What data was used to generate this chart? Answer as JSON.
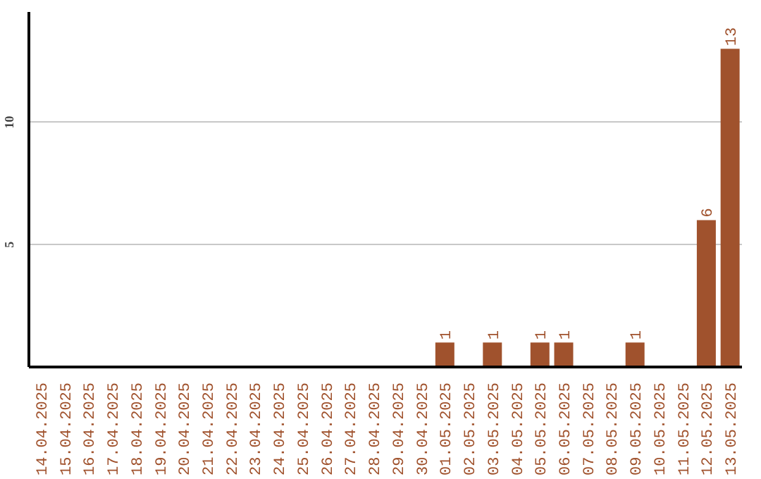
{
  "chart_data": {
    "type": "bar",
    "categories": [
      "14.04.2025",
      "15.04.2025",
      "16.04.2025",
      "17.04.2025",
      "18.04.2025",
      "19.04.2025",
      "20.04.2025",
      "21.04.2025",
      "22.04.2025",
      "23.04.2025",
      "24.04.2025",
      "25.04.2025",
      "26.04.2025",
      "27.04.2025",
      "28.04.2025",
      "29.04.2025",
      "30.04.2025",
      "01.05.2025",
      "02.05.2025",
      "03.05.2025",
      "04.05.2025",
      "05.05.2025",
      "06.05.2025",
      "07.05.2025",
      "08.05.2025",
      "09.05.2025",
      "10.05.2025",
      "11.05.2025",
      "12.05.2025",
      "13.05.2025"
    ],
    "values": [
      0,
      0,
      0,
      0,
      0,
      0,
      0,
      0,
      0,
      0,
      0,
      0,
      0,
      0,
      0,
      0,
      0,
      1,
      0,
      1,
      0,
      1,
      1,
      0,
      0,
      1,
      0,
      0,
      6,
      13
    ],
    "value_labels": [
      null,
      null,
      null,
      null,
      null,
      null,
      null,
      null,
      null,
      null,
      null,
      null,
      null,
      null,
      null,
      null,
      null,
      "1",
      null,
      "1",
      null,
      "1",
      "1",
      null,
      null,
      "1",
      null,
      null,
      "6",
      "13"
    ],
    "color": "#a0522d",
    "ylim": [
      0,
      14.5
    ],
    "yticks": [
      5,
      10
    ],
    "grid": "y"
  }
}
